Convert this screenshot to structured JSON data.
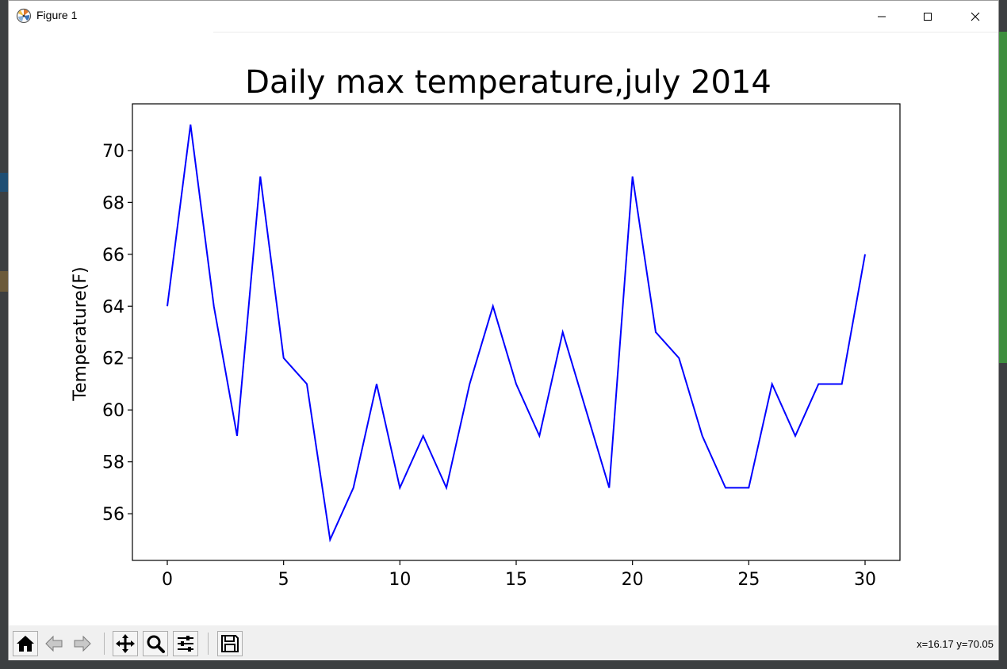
{
  "window": {
    "title": "Figure 1"
  },
  "toolbar": {
    "buttons": [
      "home-icon",
      "back-icon",
      "forward-icon",
      "pan-icon",
      "zoom-icon",
      "configure-subplots-icon",
      "save-icon"
    ],
    "coords": "x=16.17 y=70.05"
  },
  "colors": {
    "line": "#0000ff",
    "axes": "#000000"
  },
  "chart_data": {
    "type": "line",
    "title": "Daily max temperature,july 2014",
    "xlabel": "",
    "ylabel": "Temperature(F)",
    "xlim": [
      -1.5,
      31.5
    ],
    "ylim": [
      54.2,
      71.8
    ],
    "xticks": [
      0,
      5,
      10,
      15,
      20,
      25,
      30
    ],
    "xtick_labels": [
      "0",
      "5",
      "10",
      "15",
      "20",
      "25",
      "30"
    ],
    "yticks": [
      56,
      58,
      60,
      62,
      64,
      66,
      68,
      70
    ],
    "ytick_labels": [
      "56",
      "58",
      "60",
      "62",
      "64",
      "66",
      "68",
      "70"
    ],
    "grid": false,
    "series": [
      {
        "x": [
          0,
          1,
          2,
          3,
          4,
          5,
          6,
          7,
          8,
          9,
          10,
          11,
          12,
          13,
          14,
          15,
          16,
          17,
          18,
          19,
          20,
          21,
          22,
          23,
          24,
          25,
          26,
          27,
          28,
          29,
          30
        ],
        "values": [
          64,
          71,
          64,
          59,
          69,
          62,
          61,
          55,
          57,
          61,
          57,
          59,
          57,
          61,
          64,
          61,
          59,
          63,
          60,
          57,
          69,
          63,
          62,
          59,
          57,
          57,
          61,
          59,
          61,
          61,
          66
        ]
      }
    ]
  }
}
